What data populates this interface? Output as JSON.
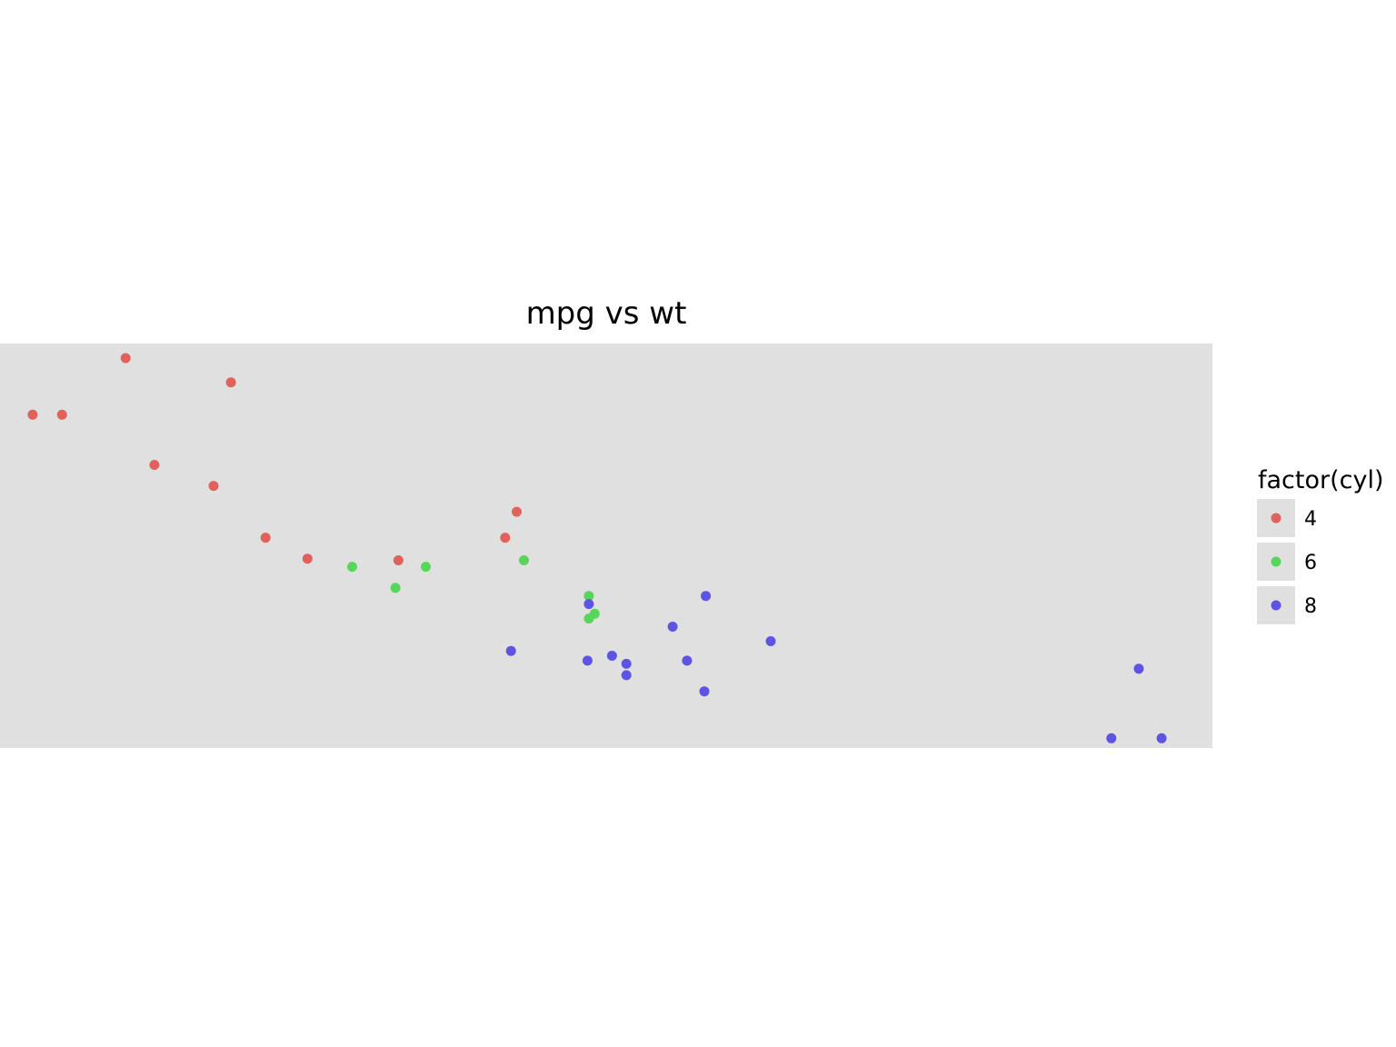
{
  "chart_data": {
    "type": "scatter",
    "title": "mpg vs wt",
    "xlabel": "",
    "ylabel": "",
    "xlim": [
      1.4,
      5.6
    ],
    "ylim": [
      9.8,
      34.8
    ],
    "grid": false,
    "legend": {
      "title": "factor(cyl)",
      "position": "right"
    },
    "series": [
      {
        "name": "4",
        "color": "#e0625b",
        "points": [
          {
            "x": 2.32,
            "y": 22.8
          },
          {
            "x": 3.19,
            "y": 24.4
          },
          {
            "x": 3.15,
            "y": 22.8
          },
          {
            "x": 2.2,
            "y": 32.4
          },
          {
            "x": 1.615,
            "y": 30.4
          },
          {
            "x": 1.835,
            "y": 33.9
          },
          {
            "x": 2.465,
            "y": 21.5
          },
          {
            "x": 1.935,
            "y": 27.3
          },
          {
            "x": 2.14,
            "y": 26.0
          },
          {
            "x": 1.513,
            "y": 30.4
          },
          {
            "x": 2.78,
            "y": 21.4
          }
        ]
      },
      {
        "name": "6",
        "color": "#56d65a",
        "points": [
          {
            "x": 2.62,
            "y": 21.0
          },
          {
            "x": 2.875,
            "y": 21.0
          },
          {
            "x": 3.215,
            "y": 21.4
          },
          {
            "x": 3.46,
            "y": 18.1
          },
          {
            "x": 3.44,
            "y": 19.2
          },
          {
            "x": 3.44,
            "y": 17.8
          },
          {
            "x": 2.77,
            "y": 19.7
          }
        ]
      },
      {
        "name": "8",
        "color": "#5e54e2",
        "points": [
          {
            "x": 3.44,
            "y": 18.7
          },
          {
            "x": 3.57,
            "y": 14.3
          },
          {
            "x": 4.07,
            "y": 16.4
          },
          {
            "x": 3.73,
            "y": 17.3
          },
          {
            "x": 3.78,
            "y": 15.2
          },
          {
            "x": 5.25,
            "y": 10.4
          },
          {
            "x": 5.424,
            "y": 10.4
          },
          {
            "x": 5.345,
            "y": 14.7
          },
          {
            "x": 3.52,
            "y": 15.5
          },
          {
            "x": 3.435,
            "y": 15.2
          },
          {
            "x": 3.84,
            "y": 13.3
          },
          {
            "x": 3.845,
            "y": 19.2
          },
          {
            "x": 3.17,
            "y": 15.8
          },
          {
            "x": 3.57,
            "y": 15.0
          }
        ]
      }
    ]
  }
}
